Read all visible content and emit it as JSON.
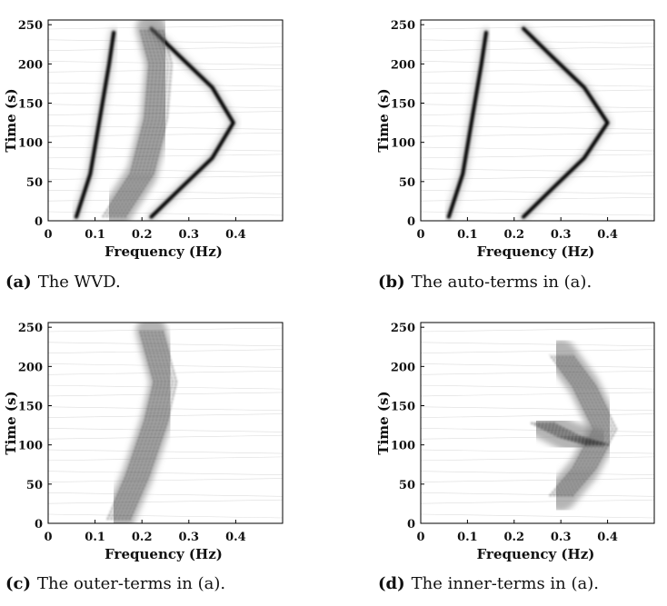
{
  "chart_data": [
    {
      "type": "heatmap",
      "caption_letter": "(a)",
      "caption_text": "The WVD.",
      "xlabel": "Frequency (Hz)",
      "ylabel": "Time (s)",
      "xlim": [
        0,
        0.5
      ],
      "ylim": [
        0,
        256
      ],
      "xticks": [
        "0",
        "0.1",
        "0.2",
        "0.3",
        "0.4"
      ],
      "yticks": [
        "0",
        "50",
        "100",
        "150",
        "200",
        "250"
      ],
      "colormap": "gray-reversed",
      "ridges": [
        {
          "name": "linear",
          "points": [
            [
              0.06,
              5
            ],
            [
              0.09,
              60
            ],
            [
              0.11,
              130
            ],
            [
              0.13,
              200
            ],
            [
              0.14,
              240
            ]
          ]
        },
        {
          "name": "parabolic",
          "points": [
            [
              0.22,
              5
            ],
            [
              0.28,
              40
            ],
            [
              0.35,
              80
            ],
            [
              0.395,
              125
            ],
            [
              0.35,
              170
            ],
            [
              0.28,
              210
            ],
            [
              0.22,
              245
            ]
          ]
        },
        {
          "name": "cross",
          "points": [
            [
              0.14,
              5
            ],
            [
              0.2,
              60
            ],
            [
              0.23,
              130
            ],
            [
              0.24,
              200
            ],
            [
              0.22,
              245
            ]
          ]
        }
      ]
    },
    {
      "type": "heatmap",
      "caption_letter": "(b)",
      "caption_text": "The auto-terms in (a).",
      "xlabel": "Frequency (Hz)",
      "ylabel": "Time (s)",
      "xlim": [
        0,
        0.5
      ],
      "ylim": [
        0,
        256
      ],
      "xticks": [
        "0",
        "0.1",
        "0.2",
        "0.3",
        "0.4"
      ],
      "yticks": [
        "0",
        "50",
        "100",
        "150",
        "200",
        "250"
      ],
      "colormap": "gray-reversed",
      "ridges": [
        {
          "name": "linear",
          "points": [
            [
              0.06,
              5
            ],
            [
              0.09,
              60
            ],
            [
              0.11,
              130
            ],
            [
              0.13,
              200
            ],
            [
              0.14,
              240
            ]
          ]
        },
        {
          "name": "parabolic",
          "points": [
            [
              0.22,
              5
            ],
            [
              0.28,
              40
            ],
            [
              0.35,
              80
            ],
            [
              0.4,
              125
            ],
            [
              0.35,
              170
            ],
            [
              0.28,
              210
            ],
            [
              0.22,
              245
            ]
          ]
        }
      ]
    },
    {
      "type": "heatmap",
      "caption_letter": "(c)",
      "caption_text": "The outer-terms in (a).",
      "xlabel": "Frequency (Hz)",
      "ylabel": "Time (s)",
      "xlim": [
        0,
        0.5
      ],
      "ylim": [
        0,
        256
      ],
      "xticks": [
        "0",
        "0.1",
        "0.2",
        "0.3",
        "0.4"
      ],
      "yticks": [
        "0",
        "50",
        "100",
        "150",
        "200",
        "250"
      ],
      "colormap": "gray-reversed",
      "ridges": [
        {
          "name": "cross",
          "points": [
            [
              0.15,
              5
            ],
            [
              0.19,
              60
            ],
            [
              0.23,
              130
            ],
            [
              0.25,
              180
            ],
            [
              0.22,
              245
            ]
          ]
        }
      ]
    },
    {
      "type": "heatmap",
      "caption_letter": "(d)",
      "caption_text": "The inner-terms in (a).",
      "xlabel": "Frequency (Hz)",
      "ylabel": "Time (s)",
      "xlim": [
        0,
        0.5
      ],
      "ylim": [
        0,
        256
      ],
      "xticks": [
        "0",
        "0.1",
        "0.2",
        "0.3",
        "0.4"
      ],
      "yticks": [
        "0",
        "50",
        "100",
        "150",
        "200",
        "250"
      ],
      "colormap": "gray-reversed",
      "ridges": [
        {
          "name": "inner-arc",
          "points": [
            [
              0.3,
              35
            ],
            [
              0.35,
              70
            ],
            [
              0.395,
              120
            ],
            [
              0.35,
              175
            ],
            [
              0.3,
              215
            ]
          ]
        },
        {
          "name": "inner-wedge",
          "points": [
            [
              0.26,
              128
            ],
            [
              0.32,
              110
            ],
            [
              0.38,
              100
            ]
          ]
        }
      ]
    }
  ]
}
